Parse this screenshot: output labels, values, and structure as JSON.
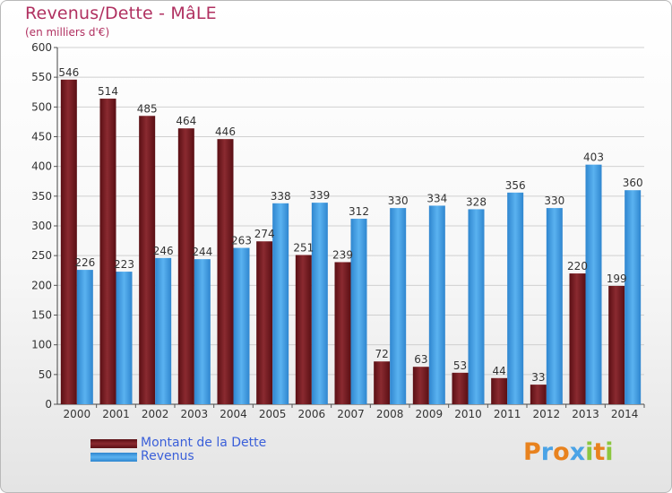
{
  "header": {
    "title": "Revenus/Dette - MâLE",
    "subtitle": "(en milliers d'€)"
  },
  "legend": {
    "items": [
      {
        "label": "Montant de la Dette",
        "color": "#7b1f24"
      },
      {
        "label": "Revenus",
        "color": "#4aa3e6"
      }
    ]
  },
  "logo": {
    "text": "Proxiti",
    "letters": [
      {
        "ch": "P",
        "color": "#e8821e"
      },
      {
        "ch": "r",
        "color": "#4aa3e6"
      },
      {
        "ch": "o",
        "color": "#e8821e"
      },
      {
        "ch": "x",
        "color": "#4aa3e6"
      },
      {
        "ch": "i",
        "color": "#8cc63f"
      },
      {
        "ch": "t",
        "color": "#e8821e"
      },
      {
        "ch": "i",
        "color": "#8cc63f"
      }
    ]
  },
  "chart_data": {
    "type": "bar",
    "title": "Revenus/Dette - MâLE",
    "subtitle": "(en milliers d'€)",
    "categories": [
      "2000",
      "2001",
      "2002",
      "2003",
      "2004",
      "2005",
      "2006",
      "2007",
      "2008",
      "2009",
      "2010",
      "2011",
      "2012",
      "2013",
      "2014"
    ],
    "series": [
      {
        "name": "Montant de la Dette",
        "color": "#7b1f24",
        "values": [
          546,
          514,
          485,
          464,
          446,
          274,
          251,
          239,
          72,
          63,
          53,
          44,
          33,
          220,
          199
        ]
      },
      {
        "name": "Revenus",
        "color": "#4aa3e6",
        "values": [
          226,
          223,
          246,
          244,
          263,
          338,
          339,
          312,
          330,
          334,
          328,
          356,
          330,
          403,
          360
        ]
      }
    ],
    "ylim": [
      0,
      600
    ],
    "yticks": [
      0,
      50,
      100,
      150,
      200,
      250,
      300,
      350,
      400,
      450,
      500,
      550,
      600
    ],
    "grid": true,
    "legend_position": "bottom-left"
  }
}
